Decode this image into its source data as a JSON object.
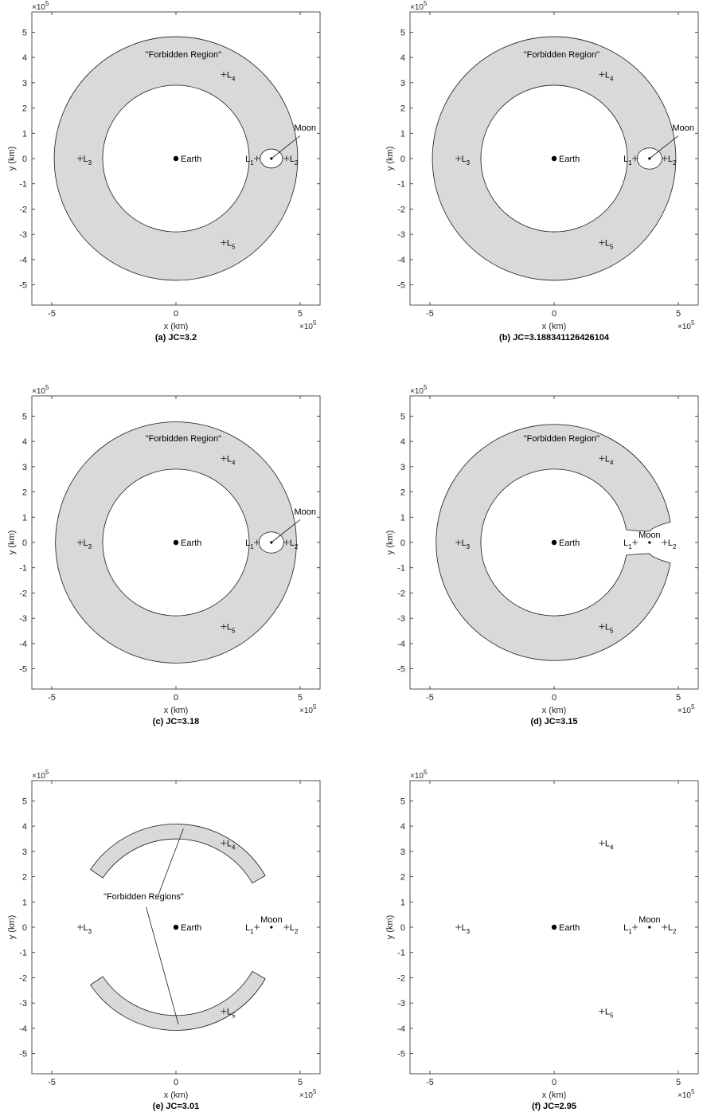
{
  "chart_data": [
    {
      "type": "area",
      "caption": "(a) JC=3.2",
      "xlabel": "x (km)",
      "ylabel": "y (km)",
      "exponent": "×10^5",
      "xlim": [
        -5.8,
        5.8
      ],
      "ylim": [
        -5.8,
        5.8
      ],
      "xticks": [
        -5,
        0,
        5
      ],
      "yticks": [
        -5,
        -4,
        -3,
        -2,
        -1,
        0,
        1,
        2,
        3,
        4,
        5
      ],
      "region": {
        "kind": "ring",
        "outer_radius": 4.9,
        "inner_radius": 2.95,
        "moon_bubble_radius": 0.45,
        "connected": true
      },
      "annotations": {
        "forbidden": "\"Forbidden Region\"",
        "moon": "Moon"
      },
      "bodies": [
        {
          "name": "Earth",
          "x": 0,
          "y": 0
        },
        {
          "name": "Moon",
          "x": 3.84,
          "y": 0
        }
      ],
      "points": [
        {
          "name": "L",
          "sub": "1",
          "x": 3.26,
          "y": 0
        },
        {
          "name": "L",
          "sub": "2",
          "x": 4.45,
          "y": 0
        },
        {
          "name": "L",
          "sub": "3",
          "x": -3.86,
          "y": 0
        },
        {
          "name": "L",
          "sub": "4",
          "x": 1.92,
          "y": 3.33
        },
        {
          "name": "L",
          "sub": "5",
          "x": 1.92,
          "y": -3.33
        }
      ]
    },
    {
      "type": "area",
      "caption": "(b) JC=3.188341126426104",
      "xlabel": "x (km)",
      "ylabel": "y (km)",
      "exponent": "×10^5",
      "xlim": [
        -5.8,
        5.8
      ],
      "ylim": [
        -5.8,
        5.8
      ],
      "xticks": [
        -5,
        0,
        5
      ],
      "yticks": [
        -5,
        -4,
        -3,
        -2,
        -1,
        0,
        1,
        2,
        3,
        4,
        5
      ],
      "region": {
        "kind": "ring",
        "outer_radius": 4.9,
        "inner_radius": 2.95,
        "moon_bubble_radius": 0.5,
        "connected": true
      },
      "annotations": {
        "forbidden": "\"Forbidden Region\"",
        "moon": "Moon"
      },
      "bodies": [
        {
          "name": "Earth",
          "x": 0,
          "y": 0
        },
        {
          "name": "Moon",
          "x": 3.84,
          "y": 0
        }
      ],
      "points": [
        {
          "name": "L",
          "sub": "1",
          "x": 3.26,
          "y": 0
        },
        {
          "name": "L",
          "sub": "2",
          "x": 4.45,
          "y": 0
        },
        {
          "name": "L",
          "sub": "3",
          "x": -3.86,
          "y": 0
        },
        {
          "name": "L",
          "sub": "4",
          "x": 1.92,
          "y": 3.33
        },
        {
          "name": "L",
          "sub": "5",
          "x": 1.92,
          "y": -3.33
        }
      ]
    },
    {
      "type": "area",
      "caption": "(c) JC=3.18",
      "xlabel": "x (km)",
      "ylabel": "y (km)",
      "exponent": "×10^5",
      "xlim": [
        -5.8,
        5.8
      ],
      "ylim": [
        -5.8,
        5.8
      ],
      "xticks": [
        -5,
        0,
        5
      ],
      "yticks": [
        -5,
        -4,
        -3,
        -2,
        -1,
        0,
        1,
        2,
        3,
        4,
        5
      ],
      "region": {
        "kind": "ring",
        "outer_radius": 4.85,
        "inner_radius": 2.95,
        "moon_bubble_radius": 0.5,
        "connected": true
      },
      "annotations": {
        "forbidden": "\"Forbidden Region\"",
        "moon": "Moon"
      },
      "bodies": [
        {
          "name": "Earth",
          "x": 0,
          "y": 0
        },
        {
          "name": "Moon",
          "x": 3.84,
          "y": 0
        }
      ],
      "points": [
        {
          "name": "L",
          "sub": "1",
          "x": 3.26,
          "y": 0
        },
        {
          "name": "L",
          "sub": "2",
          "x": 4.45,
          "y": 0
        },
        {
          "name": "L",
          "sub": "3",
          "x": -3.86,
          "y": 0
        },
        {
          "name": "L",
          "sub": "4",
          "x": 1.92,
          "y": 3.33
        },
        {
          "name": "L",
          "sub": "5",
          "x": 1.92,
          "y": -3.33
        }
      ]
    },
    {
      "type": "area",
      "caption": "(d) JC=3.15",
      "xlabel": "x (km)",
      "ylabel": "y (km)",
      "exponent": "×10^5",
      "xlim": [
        -5.8,
        5.8
      ],
      "ylim": [
        -5.8,
        5.8
      ],
      "xticks": [
        -5,
        0,
        5
      ],
      "yticks": [
        -5,
        -4,
        -3,
        -2,
        -1,
        0,
        1,
        2,
        3,
        4,
        5
      ],
      "region": {
        "kind": "ring",
        "outer_radius": 4.75,
        "inner_radius": 2.95,
        "gap_angle_deg": 10,
        "connected": false
      },
      "annotations": {
        "forbidden": "\"Forbidden Region\"",
        "moon": "Moon"
      },
      "bodies": [
        {
          "name": "Earth",
          "x": 0,
          "y": 0
        },
        {
          "name": "Moon",
          "x": 3.84,
          "y": 0
        }
      ],
      "points": [
        {
          "name": "L",
          "sub": "1",
          "x": 3.26,
          "y": 0
        },
        {
          "name": "L",
          "sub": "2",
          "x": 4.45,
          "y": 0
        },
        {
          "name": "L",
          "sub": "3",
          "x": -3.86,
          "y": 0
        },
        {
          "name": "L",
          "sub": "4",
          "x": 1.92,
          "y": 3.33
        },
        {
          "name": "L",
          "sub": "5",
          "x": 1.92,
          "y": -3.33
        }
      ]
    },
    {
      "type": "area",
      "caption": "(e) JC=3.01",
      "xlabel": "x (km)",
      "ylabel": "y (km)",
      "exponent": "×10^5",
      "xlim": [
        -5.8,
        5.8
      ],
      "ylim": [
        -5.8,
        5.8
      ],
      "xticks": [
        -5,
        0,
        5
      ],
      "yticks": [
        -5,
        -4,
        -3,
        -2,
        -1,
        0,
        1,
        2,
        3,
        4,
        5
      ],
      "region": {
        "kind": "crescents",
        "outer_radius": 4.15,
        "inner_radius": 3.55,
        "arc_start_deg": 30,
        "arc_end_deg": 146
      },
      "annotations": {
        "forbidden": "\"Forbidden Regions\"",
        "moon": "Moon"
      },
      "bodies": [
        {
          "name": "Earth",
          "x": 0,
          "y": 0
        },
        {
          "name": "Moon",
          "x": 3.84,
          "y": 0
        }
      ],
      "points": [
        {
          "name": "L",
          "sub": "1",
          "x": 3.26,
          "y": 0
        },
        {
          "name": "L",
          "sub": "2",
          "x": 4.45,
          "y": 0
        },
        {
          "name": "L",
          "sub": "3",
          "x": -3.86,
          "y": 0
        },
        {
          "name": "L",
          "sub": "4",
          "x": 1.92,
          "y": 3.33
        },
        {
          "name": "L",
          "sub": "5",
          "x": 1.92,
          "y": -3.33
        }
      ]
    },
    {
      "type": "area",
      "caption": "(f) JC=2.95",
      "xlabel": "x (km)",
      "ylabel": "y (km)",
      "exponent": "×10^5",
      "xlim": [
        -5.8,
        5.8
      ],
      "ylim": [
        -5.8,
        5.8
      ],
      "xticks": [
        -5,
        0,
        5
      ],
      "yticks": [
        -5,
        -4,
        -3,
        -2,
        -1,
        0,
        1,
        2,
        3,
        4,
        5
      ],
      "region": {
        "kind": "none"
      },
      "annotations": {
        "moon": "Moon"
      },
      "bodies": [
        {
          "name": "Earth",
          "x": 0,
          "y": 0
        },
        {
          "name": "Moon",
          "x": 3.84,
          "y": 0
        }
      ],
      "points": [
        {
          "name": "L",
          "sub": "1",
          "x": 3.26,
          "y": 0
        },
        {
          "name": "L",
          "sub": "2",
          "x": 4.45,
          "y": 0
        },
        {
          "name": "L",
          "sub": "3",
          "x": -3.86,
          "y": 0
        },
        {
          "name": "L",
          "sub": "4",
          "x": 1.92,
          "y": 3.33
        },
        {
          "name": "L",
          "sub": "5",
          "x": 1.92,
          "y": -3.33
        }
      ]
    }
  ]
}
